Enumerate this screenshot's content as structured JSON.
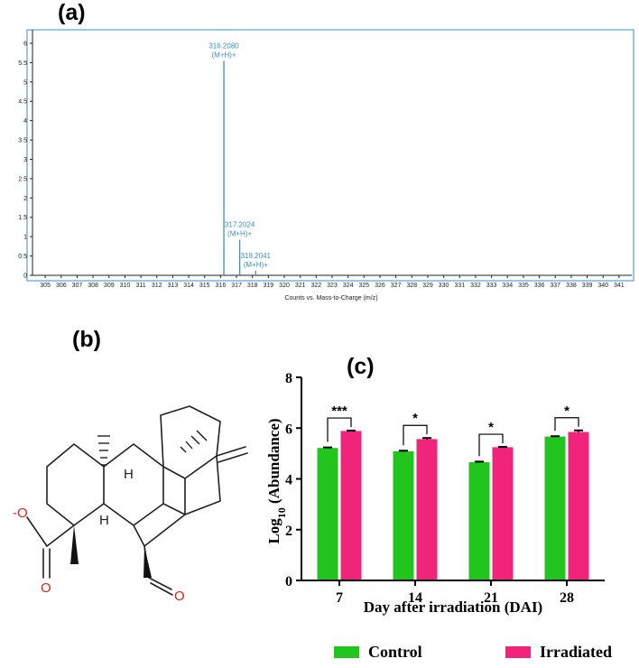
{
  "panels": {
    "a": "(a)",
    "b": "(b)",
    "c": "(c)"
  },
  "chart_data": [
    {
      "type": "bar",
      "panel": "(a)",
      "xlabel": "Counts vs. Mass-to-Charge (m/z)",
      "ylabel": "",
      "x_ticks": [
        "305",
        "306",
        "307",
        "308",
        "309",
        "310",
        "311",
        "312",
        "313",
        "314",
        "315",
        "316",
        "317",
        "318",
        "319",
        "320",
        "321",
        "322",
        "323",
        "324",
        "325",
        "326",
        "327",
        "328",
        "329",
        "330",
        "331",
        "332",
        "333",
        "334",
        "335",
        "336",
        "337",
        "338",
        "339",
        "340",
        "341"
      ],
      "y_ticks": [
        "0",
        "0.5",
        "1",
        "1.5",
        "2",
        "2.5",
        "3",
        "3.5",
        "4",
        "4.5",
        "5",
        "5.5",
        "6"
      ],
      "xlim": [
        304.2,
        341.8
      ],
      "ylim": [
        0,
        6.35
      ],
      "peaks": [
        {
          "x": 316.208,
          "y": 5.55,
          "label_mz": "316.2080",
          "label_ion": "(M+H)+"
        },
        {
          "x": 317.2024,
          "y": 0.92,
          "label_mz": "317.2024",
          "label_ion": "(M+H)+"
        },
        {
          "x": 318.2041,
          "y": 0.12,
          "label_mz": "318.2041",
          "label_ion": "(M+H)+"
        }
      ],
      "color": "#3a8fc8"
    },
    {
      "type": "bar",
      "panel": "(c)",
      "categories": [
        "7",
        "14",
        "21",
        "28"
      ],
      "series": [
        {
          "name": "Control",
          "values": [
            5.2,
            5.07,
            4.64,
            5.65
          ],
          "errors": [
            0.04,
            0.04,
            0.04,
            0.03
          ],
          "color": "#22c41e"
        },
        {
          "name": "Irradiated",
          "values": [
            5.87,
            5.55,
            5.23,
            5.83
          ],
          "errors": [
            0.03,
            0.06,
            0.03,
            0.08
          ],
          "color": "#f0247a"
        }
      ],
      "significance": [
        "***",
        "*",
        "*",
        "*"
      ],
      "xlabel": "Day after irradiation (DAI)",
      "ylabel_main": "Log",
      "ylabel_sub": "10",
      "ylabel_rest": " (Abundance)",
      "y_ticks": [
        "0",
        "2",
        "4",
        "6",
        "8"
      ],
      "ylim": [
        0,
        8
      ],
      "legend_position": "bottom"
    }
  ],
  "structure": {
    "atoms": {
      "o_minus": "-O",
      "o_carbonyl_acid": "O",
      "o_aldehyde": "O",
      "h_top": "H",
      "h_bottom": "H"
    }
  }
}
